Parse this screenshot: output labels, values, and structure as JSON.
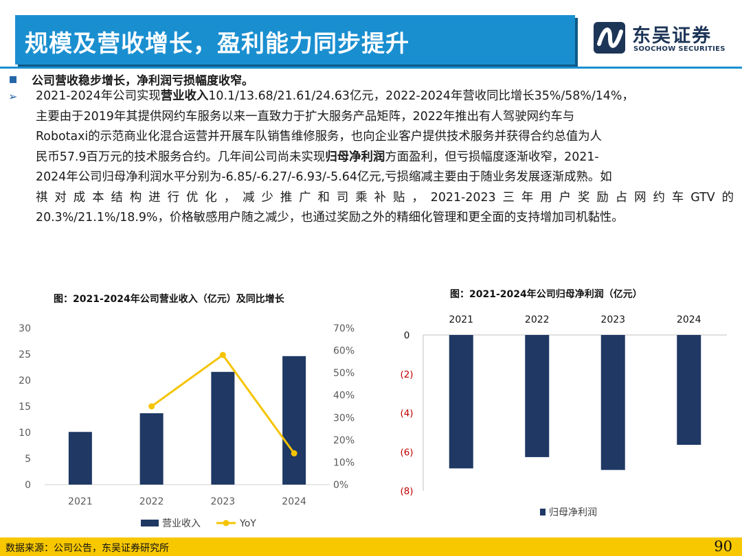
{
  "header": {
    "title": "规模及营收增长，盈利能力同步提升",
    "logo_cn": "东吴证券",
    "logo_en": "SOOCHOW SECURITIES"
  },
  "bullet": {
    "text": "公司营收稳步增长，净利润亏损幅度收窄。"
  },
  "paragraph": {
    "l1_a": "2021-2024年公司实现",
    "l1_b": "营业收入",
    "l1_c": "10.1/13.68/21.61/24.63亿元，2022-2024年营收同比增长35%/58%/14%，",
    "l2": "主要由于2019年其提供网约车服务以来一直致力于扩大服务产品矩阵，2022年推出有人驾驶网约车与",
    "l3": "Robotaxi的示范商业化混合运营并开展车队销售维修服务，也向企业客户提供技术服务并获得合约总值为人",
    "l4_a": "民币57.9百万元的技术服务合约。几年间公司尚未实现",
    "l4_b": "归母净利润",
    "l4_c": "方面盈利，但亏损幅度逐渐收窄，2021-",
    "l5": "2024年公司归母净利润水平分别为-6.85/-6.27/-6.93/-5.64亿元,亏损缩减主要由于随业务发展逐渐成熟。如",
    "l6": "祺对成本结构进行优化，减少推广和司乘补贴，2021-2023三年用户奖励占网约车GTV的",
    "l7": "20.3%/21.1%/18.9%，价格敏感用户随之减少，也通过奖励之外的精细化管理和更全面的支持增加司机黏性。"
  },
  "chart_data": [
    {
      "type": "bar",
      "title": "图：2021-2024年公司营业收入（亿元）及同比增长",
      "categories": [
        "2021",
        "2022",
        "2023",
        "2024"
      ],
      "series": [
        {
          "name": "营业收入",
          "type": "bar",
          "axis": "left",
          "values": [
            10.1,
            13.68,
            21.61,
            24.63
          ],
          "color": "#1f3864"
        },
        {
          "name": "YoY",
          "type": "line",
          "axis": "right",
          "values": [
            null,
            35,
            58,
            14
          ],
          "color": "#f5c400"
        }
      ],
      "y_left": {
        "min": 0,
        "max": 30,
        "ticks": [
          "0",
          "5",
          "10",
          "15",
          "20",
          "25",
          "30"
        ]
      },
      "y_right": {
        "min": 0,
        "max": 70,
        "ticks": [
          "0%",
          "10%",
          "20%",
          "30%",
          "40%",
          "50%",
          "60%",
          "70%"
        ]
      },
      "legend": "bottom",
      "grid": false
    },
    {
      "type": "bar",
      "title": "图：2021-2024年公司归母净利润（亿元）",
      "categories": [
        "2021",
        "2022",
        "2023",
        "2024"
      ],
      "series": [
        {
          "name": "归母净利润",
          "values": [
            -6.85,
            -6.27,
            -6.93,
            -5.64
          ],
          "color": "#1f3864"
        }
      ],
      "y": {
        "min": -8,
        "max": 0,
        "ticks": [
          "0",
          "(2)",
          "(4)",
          "(6)",
          "(8)"
        ]
      },
      "category_axis_position": "top",
      "legend": "bottom",
      "grid": false
    }
  ],
  "footer": {
    "source": "数据来源：公司公告，东吴证券研究所",
    "page_number": "90"
  }
}
